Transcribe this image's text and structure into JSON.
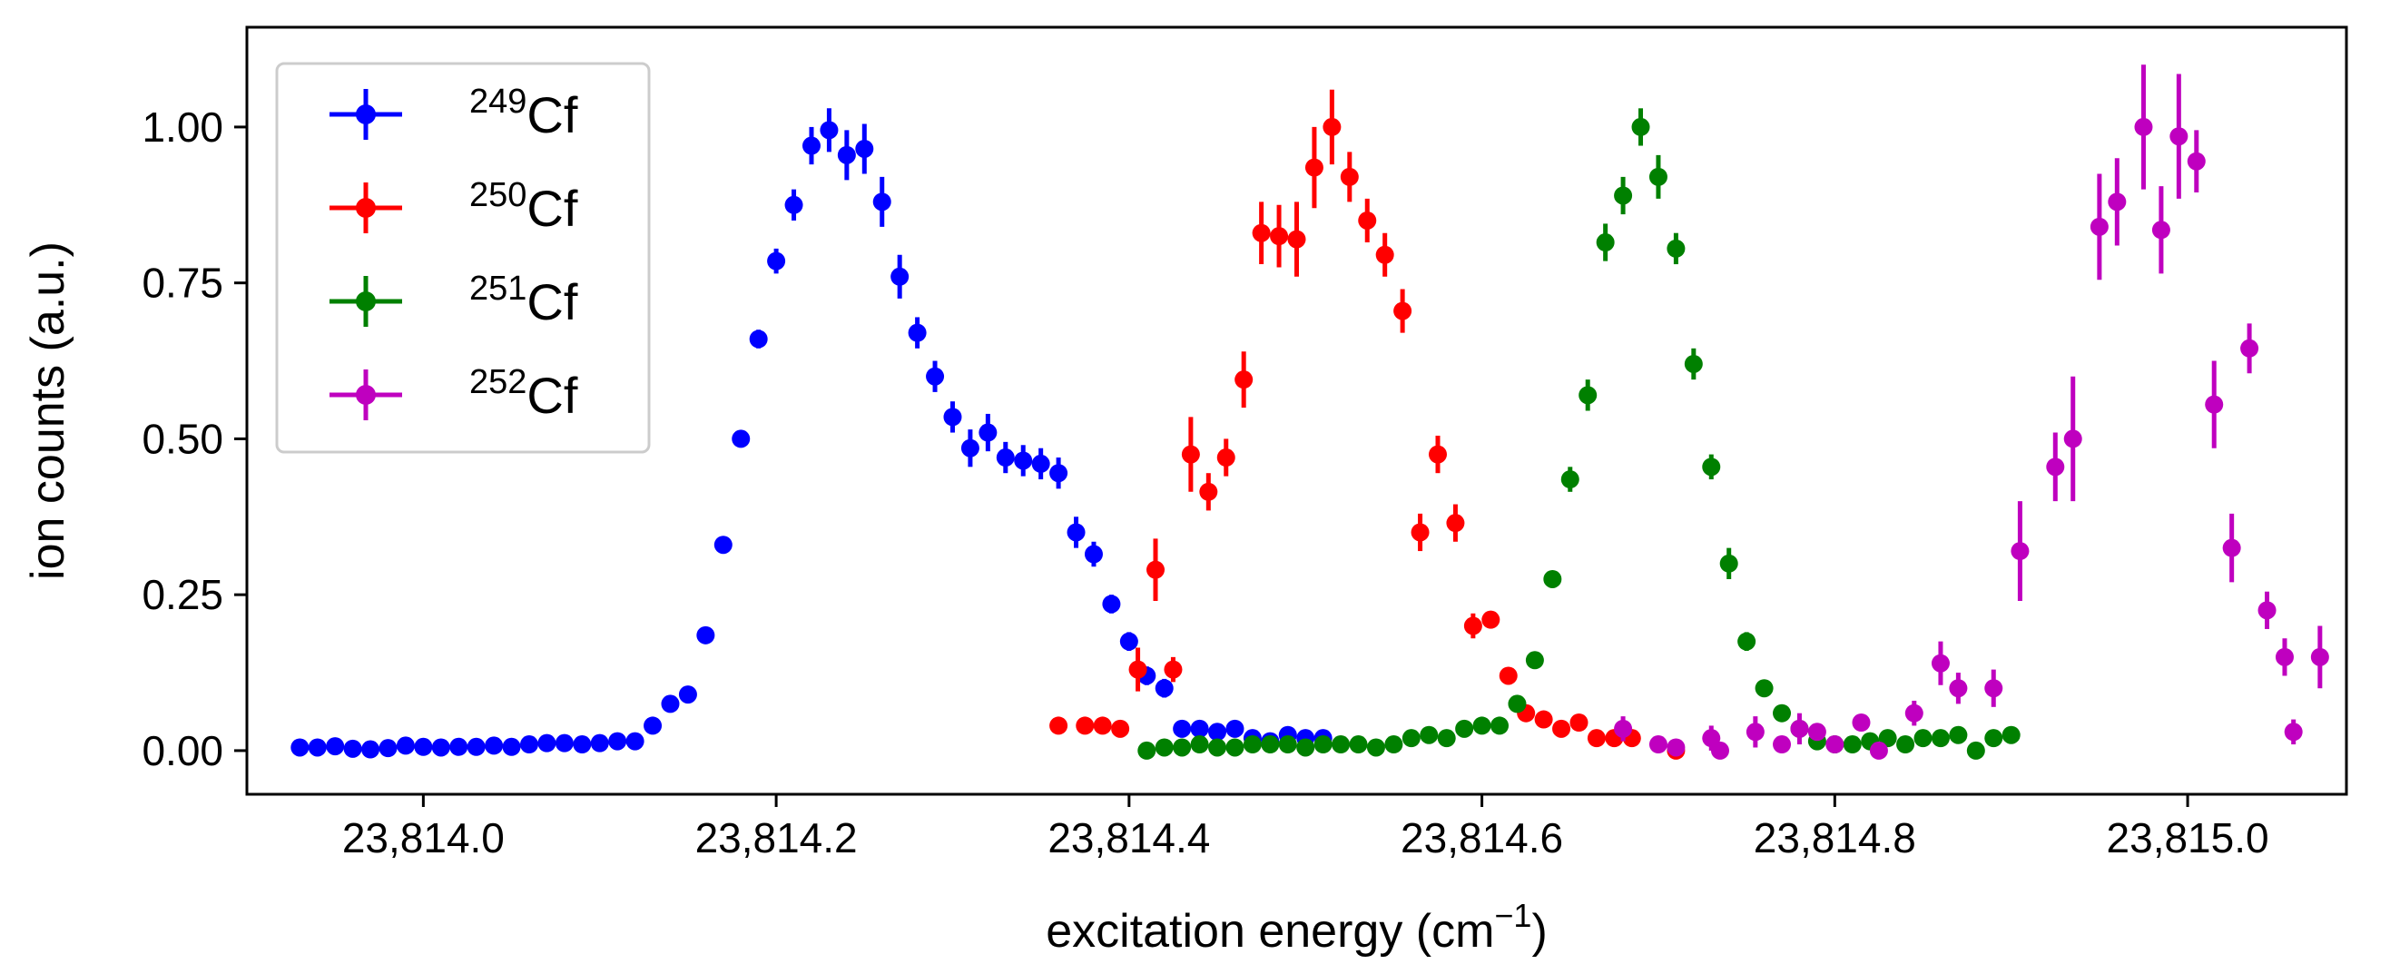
{
  "chart_data": {
    "type": "scatter",
    "xlabel": "excitation energy (cm",
    "xlabel_sup": "−1",
    "xlabel_end": ")",
    "ylabel": "ion counts (a.u.)",
    "xlim": [
      23813.9,
      23815.09
    ],
    "ylim": [
      -0.07,
      1.16
    ],
    "x_ticks": [
      23814.0,
      23814.2,
      23814.4,
      23814.6,
      23814.8,
      23815.0
    ],
    "x_tick_labels": [
      "23,814.0",
      "23,814.2",
      "23,814.4",
      "23,814.6",
      "23,814.8",
      "23,815.0"
    ],
    "y_ticks": [
      0.0,
      0.25,
      0.5,
      0.75,
      1.0
    ],
    "y_tick_labels": [
      "0.00",
      "0.25",
      "0.50",
      "0.75",
      "1.00"
    ],
    "grid": false,
    "legend_position": "top-left",
    "series": [
      {
        "name": "Cf",
        "mass": "249",
        "color": "#0000ff",
        "points": [
          [
            23813.93,
            0.005,
            0.0
          ],
          [
            23813.94,
            0.005,
            0.0
          ],
          [
            23813.95,
            0.007,
            0.0
          ],
          [
            23813.96,
            0.003,
            0.0
          ],
          [
            23813.97,
            0.002,
            0.0
          ],
          [
            23813.98,
            0.004,
            0.0
          ],
          [
            23813.99,
            0.008,
            0.0
          ],
          [
            23814.0,
            0.006,
            0.0
          ],
          [
            23814.01,
            0.005,
            0.0
          ],
          [
            23814.02,
            0.006,
            0.0
          ],
          [
            23814.03,
            0.006,
            0.0
          ],
          [
            23814.04,
            0.008,
            0.0
          ],
          [
            23814.05,
            0.006,
            0.0
          ],
          [
            23814.06,
            0.01,
            0.0
          ],
          [
            23814.07,
            0.012,
            0.0
          ],
          [
            23814.08,
            0.012,
            0.0
          ],
          [
            23814.09,
            0.01,
            0.0
          ],
          [
            23814.1,
            0.012,
            0.0
          ],
          [
            23814.11,
            0.015,
            0.0
          ],
          [
            23814.12,
            0.015,
            0.0
          ],
          [
            23814.13,
            0.04,
            0.0
          ],
          [
            23814.14,
            0.075,
            0.0
          ],
          [
            23814.15,
            0.09,
            0.0
          ],
          [
            23814.16,
            0.185,
            0.0
          ],
          [
            23814.17,
            0.33,
            0.0
          ],
          [
            23814.18,
            0.5,
            0.0
          ],
          [
            23814.19,
            0.66,
            0.015
          ],
          [
            23814.2,
            0.785,
            0.02
          ],
          [
            23814.21,
            0.875,
            0.025
          ],
          [
            23814.22,
            0.97,
            0.03
          ],
          [
            23814.23,
            0.995,
            0.035
          ],
          [
            23814.24,
            0.955,
            0.04
          ],
          [
            23814.25,
            0.965,
            0.04
          ],
          [
            23814.26,
            0.88,
            0.04
          ],
          [
            23814.27,
            0.76,
            0.035
          ],
          [
            23814.28,
            0.67,
            0.025
          ],
          [
            23814.29,
            0.6,
            0.025
          ],
          [
            23814.3,
            0.535,
            0.025
          ],
          [
            23814.31,
            0.485,
            0.03
          ],
          [
            23814.32,
            0.51,
            0.03
          ],
          [
            23814.33,
            0.47,
            0.025
          ],
          [
            23814.34,
            0.465,
            0.025
          ],
          [
            23814.35,
            0.46,
            0.025
          ],
          [
            23814.36,
            0.445,
            0.025
          ],
          [
            23814.37,
            0.35,
            0.025
          ],
          [
            23814.38,
            0.315,
            0.02
          ],
          [
            23814.39,
            0.235,
            0.015
          ],
          [
            23814.4,
            0.175,
            0.015
          ],
          [
            23814.41,
            0.12,
            0.015
          ],
          [
            23814.42,
            0.1,
            0.015
          ],
          [
            23814.43,
            0.035,
            0.0
          ],
          [
            23814.44,
            0.035,
            0.0
          ],
          [
            23814.45,
            0.03,
            0.0
          ],
          [
            23814.46,
            0.035,
            0.0
          ],
          [
            23814.47,
            0.02,
            0.0
          ],
          [
            23814.48,
            0.015,
            0.0
          ],
          [
            23814.49,
            0.025,
            0.0
          ],
          [
            23814.5,
            0.02,
            0.0
          ],
          [
            23814.51,
            0.02,
            0.0
          ]
        ]
      },
      {
        "name": "Cf",
        "mass": "250",
        "color": "#ff0000",
        "points": [
          [
            23814.36,
            0.04,
            0.0
          ],
          [
            23814.375,
            0.04,
            0.0
          ],
          [
            23814.385,
            0.04,
            0.0
          ],
          [
            23814.395,
            0.035,
            0.0
          ],
          [
            23814.405,
            0.13,
            0.035
          ],
          [
            23814.415,
            0.29,
            0.05
          ],
          [
            23814.425,
            0.13,
            0.02
          ],
          [
            23814.435,
            0.475,
            0.06
          ],
          [
            23814.445,
            0.415,
            0.03
          ],
          [
            23814.455,
            0.47,
            0.03
          ],
          [
            23814.465,
            0.595,
            0.045
          ],
          [
            23814.475,
            0.83,
            0.05
          ],
          [
            23814.485,
            0.825,
            0.05
          ],
          [
            23814.495,
            0.82,
            0.06
          ],
          [
            23814.505,
            0.935,
            0.065
          ],
          [
            23814.515,
            1.0,
            0.06
          ],
          [
            23814.525,
            0.92,
            0.04
          ],
          [
            23814.535,
            0.85,
            0.035
          ],
          [
            23814.545,
            0.795,
            0.035
          ],
          [
            23814.555,
            0.705,
            0.035
          ],
          [
            23814.565,
            0.35,
            0.03
          ],
          [
            23814.575,
            0.475,
            0.03
          ],
          [
            23814.585,
            0.365,
            0.03
          ],
          [
            23814.595,
            0.2,
            0.02
          ],
          [
            23814.605,
            0.21,
            0.0
          ],
          [
            23814.615,
            0.12,
            0.0
          ],
          [
            23814.625,
            0.06,
            0.0
          ],
          [
            23814.635,
            0.05,
            0.0
          ],
          [
            23814.645,
            0.035,
            0.0
          ],
          [
            23814.655,
            0.045,
            0.0
          ],
          [
            23814.665,
            0.02,
            0.0
          ],
          [
            23814.675,
            0.02,
            0.0
          ],
          [
            23814.685,
            0.02,
            0.0
          ],
          [
            23814.71,
            0.0,
            0.0
          ]
        ]
      },
      {
        "name": "Cf",
        "mass": "251",
        "color": "#008000",
        "points": [
          [
            23814.41,
            0.0,
            0.0
          ],
          [
            23814.42,
            0.005,
            0.0
          ],
          [
            23814.43,
            0.005,
            0.0
          ],
          [
            23814.44,
            0.01,
            0.0
          ],
          [
            23814.45,
            0.005,
            0.0
          ],
          [
            23814.46,
            0.005,
            0.0
          ],
          [
            23814.47,
            0.01,
            0.0
          ],
          [
            23814.48,
            0.01,
            0.0
          ],
          [
            23814.49,
            0.01,
            0.0
          ],
          [
            23814.5,
            0.005,
            0.0
          ],
          [
            23814.51,
            0.01,
            0.0
          ],
          [
            23814.52,
            0.01,
            0.0
          ],
          [
            23814.53,
            0.01,
            0.0
          ],
          [
            23814.54,
            0.005,
            0.0
          ],
          [
            23814.55,
            0.01,
            0.0
          ],
          [
            23814.56,
            0.02,
            0.0
          ],
          [
            23814.57,
            0.025,
            0.0
          ],
          [
            23814.58,
            0.02,
            0.0
          ],
          [
            23814.59,
            0.035,
            0.0
          ],
          [
            23814.6,
            0.04,
            0.0
          ],
          [
            23814.61,
            0.04,
            0.0
          ],
          [
            23814.62,
            0.075,
            0.0
          ],
          [
            23814.63,
            0.145,
            0.0
          ],
          [
            23814.64,
            0.275,
            0.0
          ],
          [
            23814.65,
            0.435,
            0.02
          ],
          [
            23814.66,
            0.57,
            0.025
          ],
          [
            23814.67,
            0.815,
            0.03
          ],
          [
            23814.68,
            0.89,
            0.03
          ],
          [
            23814.69,
            1.0,
            0.03
          ],
          [
            23814.7,
            0.92,
            0.035
          ],
          [
            23814.71,
            0.805,
            0.025
          ],
          [
            23814.72,
            0.62,
            0.025
          ],
          [
            23814.73,
            0.455,
            0.02
          ],
          [
            23814.74,
            0.3,
            0.025
          ],
          [
            23814.75,
            0.175,
            0.015
          ],
          [
            23814.76,
            0.1,
            0.0
          ],
          [
            23814.77,
            0.06,
            0.0
          ],
          [
            23814.78,
            0.035,
            0.0
          ],
          [
            23814.79,
            0.015,
            0.0
          ],
          [
            23814.8,
            0.01,
            0.0
          ],
          [
            23814.81,
            0.01,
            0.0
          ],
          [
            23814.82,
            0.015,
            0.0
          ],
          [
            23814.83,
            0.02,
            0.0
          ],
          [
            23814.84,
            0.01,
            0.0
          ],
          [
            23814.85,
            0.02,
            0.0
          ],
          [
            23814.86,
            0.02,
            0.0
          ],
          [
            23814.87,
            0.025,
            0.0
          ],
          [
            23814.88,
            0.0,
            0.0
          ],
          [
            23814.89,
            0.02,
            0.0
          ],
          [
            23814.9,
            0.025,
            0.0
          ]
        ]
      },
      {
        "name": "Cf",
        "mass": "252",
        "color": "#bf00bf",
        "points": [
          [
            23814.68,
            0.035,
            0.02
          ],
          [
            23814.7,
            0.01,
            0.0
          ],
          [
            23814.71,
            0.005,
            0.0
          ],
          [
            23814.73,
            0.02,
            0.02
          ],
          [
            23814.735,
            0.0,
            0.0
          ],
          [
            23814.755,
            0.03,
            0.025
          ],
          [
            23814.77,
            0.01,
            0.0
          ],
          [
            23814.78,
            0.035,
            0.025
          ],
          [
            23814.79,
            0.03,
            0.0
          ],
          [
            23814.8,
            0.01,
            0.0
          ],
          [
            23814.815,
            0.045,
            0.0
          ],
          [
            23814.825,
            0.0,
            0.0
          ],
          [
            23814.845,
            0.06,
            0.02
          ],
          [
            23814.86,
            0.14,
            0.035
          ],
          [
            23814.87,
            0.1,
            0.025
          ],
          [
            23814.89,
            0.1,
            0.03
          ],
          [
            23814.905,
            0.32,
            0.08
          ],
          [
            23814.925,
            0.455,
            0.055
          ],
          [
            23814.935,
            0.5,
            0.1
          ],
          [
            23814.95,
            0.84,
            0.085
          ],
          [
            23814.96,
            0.88,
            0.07
          ],
          [
            23814.975,
            1.0,
            0.1
          ],
          [
            23814.985,
            0.835,
            0.07
          ],
          [
            23814.995,
            0.985,
            0.1
          ],
          [
            23815.005,
            0.945,
            0.05
          ],
          [
            23815.015,
            0.555,
            0.07
          ],
          [
            23815.025,
            0.325,
            0.055
          ],
          [
            23815.035,
            0.645,
            0.04
          ],
          [
            23815.045,
            0.225,
            0.03
          ],
          [
            23815.055,
            0.15,
            0.03
          ],
          [
            23815.06,
            0.03,
            0.02
          ],
          [
            23815.075,
            0.15,
            0.05
          ]
        ]
      }
    ]
  }
}
